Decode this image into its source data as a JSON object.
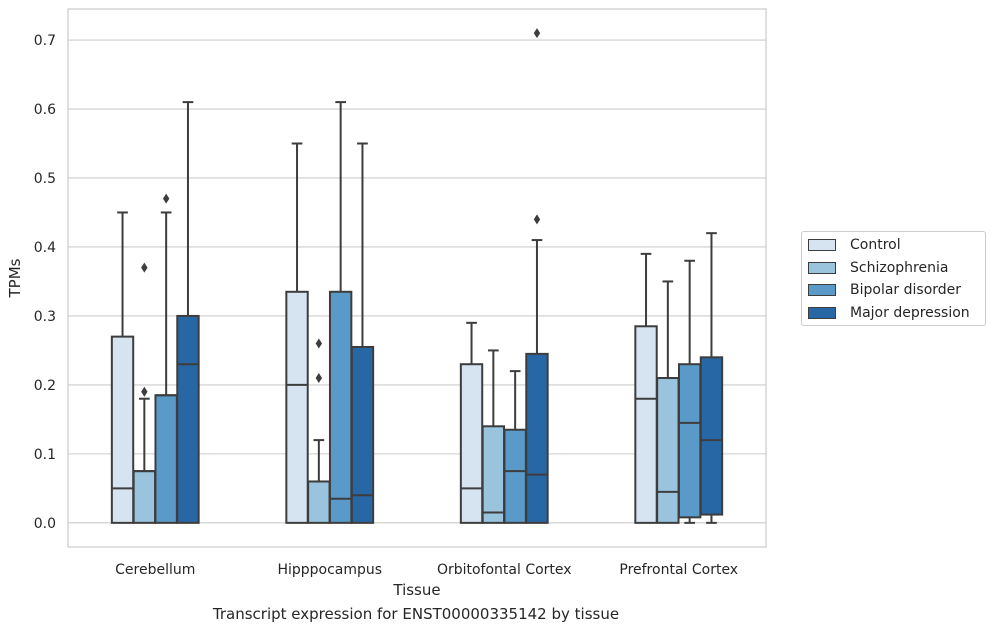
{
  "chart_data": {
    "type": "box",
    "title": "",
    "caption": "Transcript expression for ENST00000335142 by tissue",
    "xlabel": "Tissue",
    "ylabel": "TPMs",
    "ylim": [
      -0.035,
      0.745
    ],
    "yticks": [
      "0.0",
      "0.1",
      "0.2",
      "0.3",
      "0.4",
      "0.5",
      "0.6",
      "0.7"
    ],
    "categories": [
      "Cerebellum",
      "Hipppocampus",
      "Orbitofontal Cortex",
      "Prefrontal Cortex"
    ],
    "grid": true,
    "legend_position": "right",
    "series": [
      {
        "name": "Control",
        "color": "#d6e4f2",
        "boxes": [
          {
            "min": 0.0,
            "q1": 0.0,
            "median": 0.05,
            "q3": 0.27,
            "max": 0.45,
            "outliers": []
          },
          {
            "min": 0.0,
            "q1": 0.0,
            "median": 0.2,
            "q3": 0.335,
            "max": 0.55,
            "outliers": []
          },
          {
            "min": 0.0,
            "q1": 0.0,
            "median": 0.05,
            "q3": 0.23,
            "max": 0.29,
            "outliers": []
          },
          {
            "min": 0.0,
            "q1": 0.0,
            "median": 0.18,
            "q3": 0.285,
            "max": 0.39,
            "outliers": []
          }
        ]
      },
      {
        "name": "Schizophrenia",
        "color": "#9ac4dd",
        "boxes": [
          {
            "min": 0.0,
            "q1": 0.0,
            "median": 0.075,
            "q3": 0.075,
            "max": 0.18,
            "outliers": [
              0.19,
              0.37
            ]
          },
          {
            "min": 0.0,
            "q1": 0.0,
            "median": 0.06,
            "q3": 0.06,
            "max": 0.12,
            "outliers": [
              0.21,
              0.26
            ]
          },
          {
            "min": 0.0,
            "q1": 0.0,
            "median": 0.015,
            "q3": 0.14,
            "max": 0.25,
            "outliers": []
          },
          {
            "min": 0.0,
            "q1": 0.0,
            "median": 0.045,
            "q3": 0.21,
            "max": 0.35,
            "outliers": []
          }
        ]
      },
      {
        "name": "Bipolar disorder",
        "color": "#5a9ac8",
        "boxes": [
          {
            "min": 0.0,
            "q1": 0.0,
            "median": 0.185,
            "q3": 0.185,
            "max": 0.45,
            "outliers": [
              0.47
            ]
          },
          {
            "min": 0.0,
            "q1": 0.0,
            "median": 0.035,
            "q3": 0.335,
            "max": 0.61,
            "outliers": []
          },
          {
            "min": 0.0,
            "q1": 0.0,
            "median": 0.075,
            "q3": 0.135,
            "max": 0.22,
            "outliers": []
          },
          {
            "min": 0.0,
            "q1": 0.008,
            "median": 0.145,
            "q3": 0.23,
            "max": 0.38,
            "outliers": []
          }
        ]
      },
      {
        "name": "Major depression",
        "color": "#2867a5",
        "boxes": [
          {
            "min": 0.0,
            "q1": 0.0,
            "median": 0.23,
            "q3": 0.3,
            "max": 0.61,
            "outliers": []
          },
          {
            "min": 0.0,
            "q1": 0.0,
            "median": 0.04,
            "q3": 0.255,
            "max": 0.55,
            "outliers": []
          },
          {
            "min": 0.0,
            "q1": 0.0,
            "median": 0.07,
            "q3": 0.245,
            "max": 0.41,
            "outliers": [
              0.44,
              0.71
            ]
          },
          {
            "min": 0.0,
            "q1": 0.012,
            "median": 0.12,
            "q3": 0.24,
            "max": 0.42,
            "outliers": []
          }
        ]
      }
    ]
  }
}
